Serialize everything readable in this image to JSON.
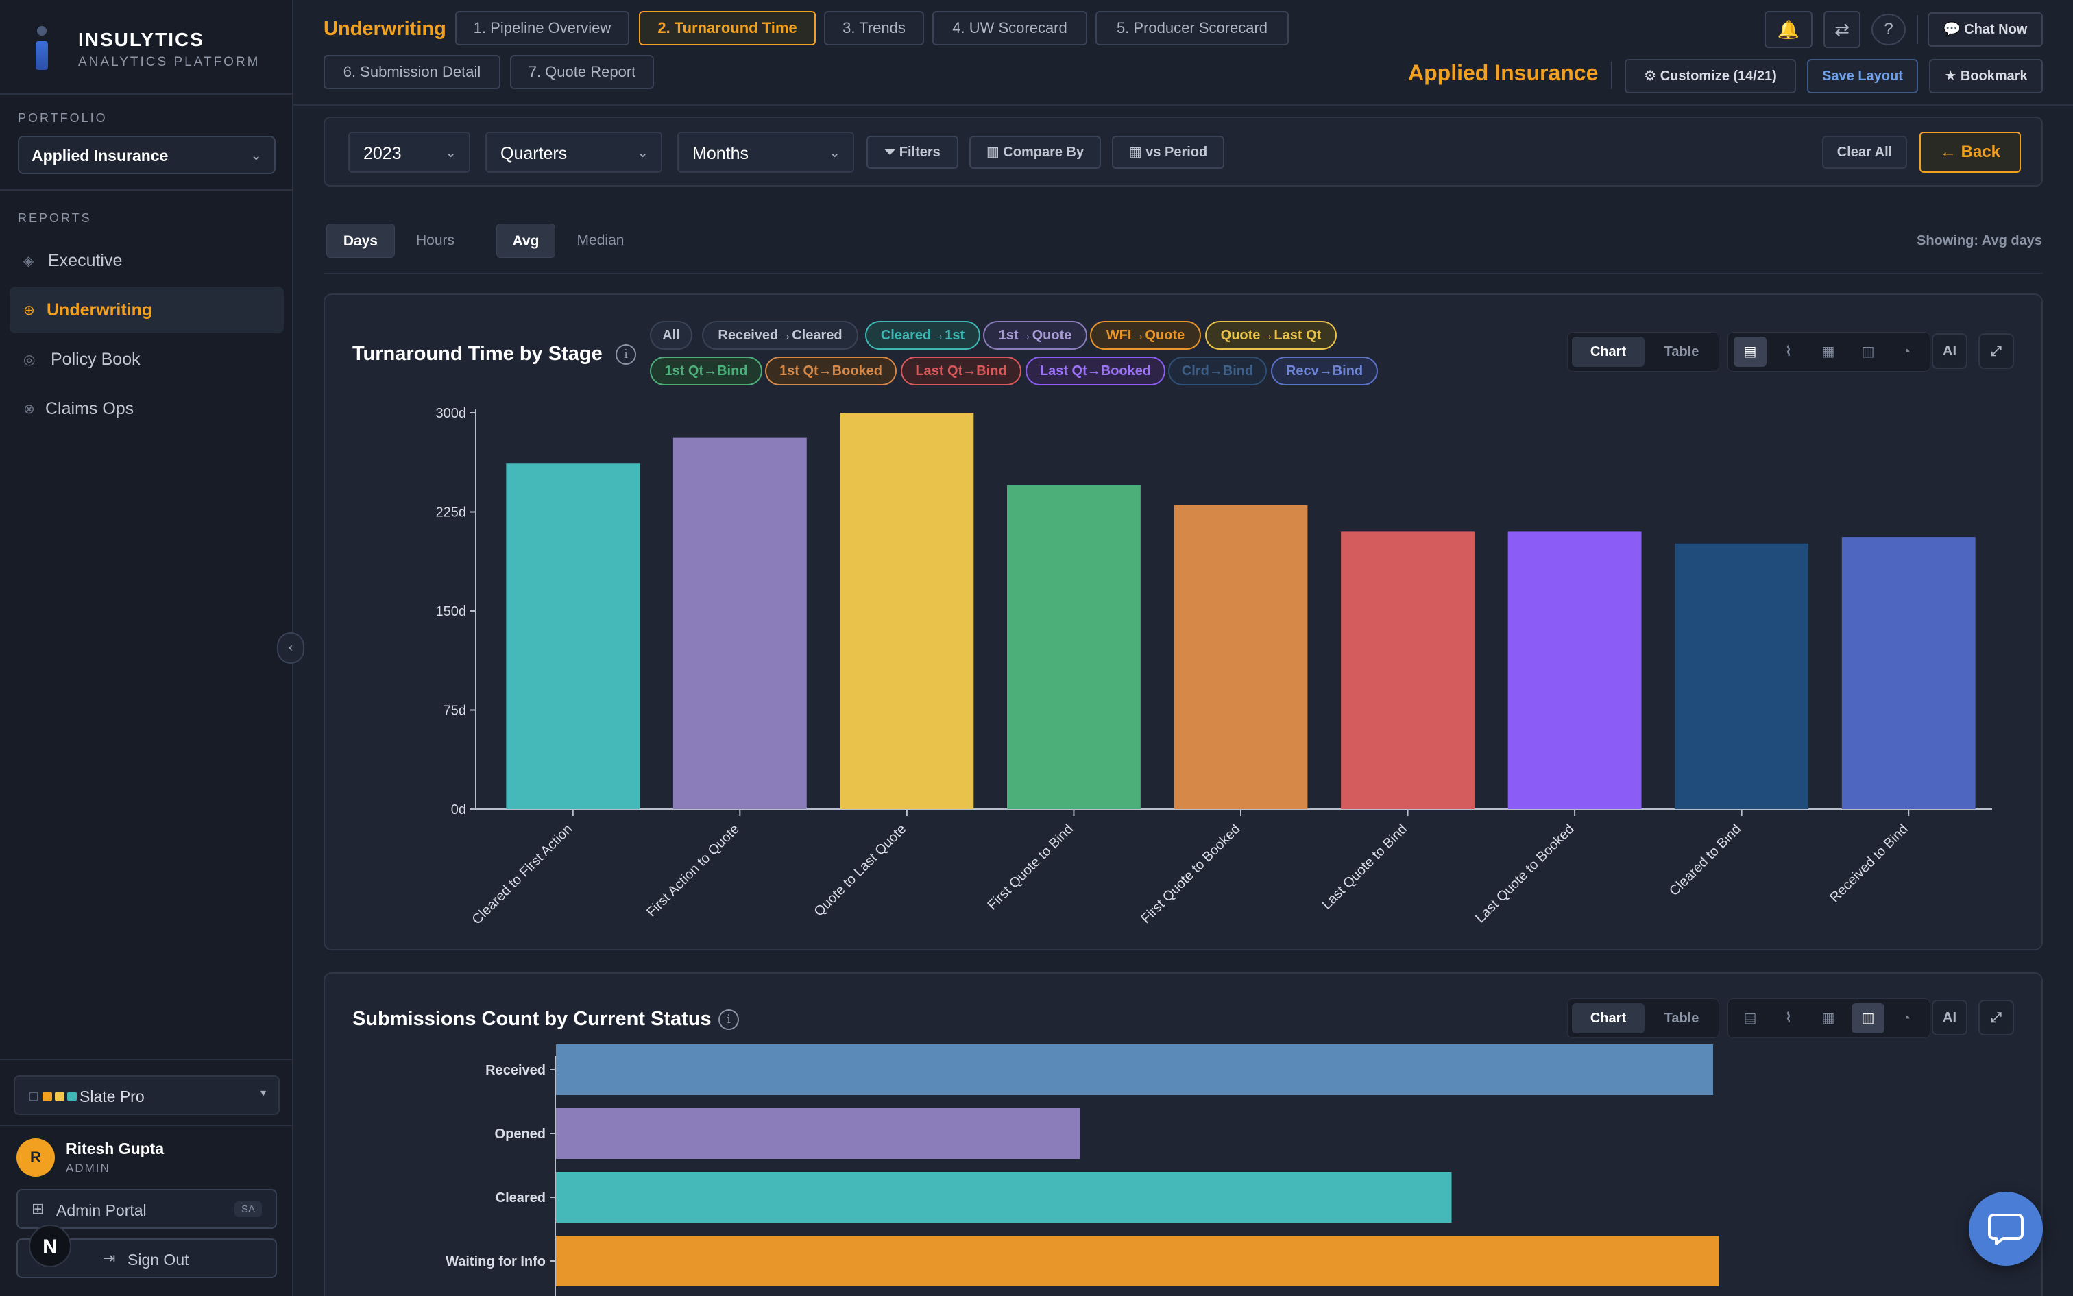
{
  "brand": {
    "name": "INSULYTICS",
    "subtitle": "ANALYTICS PLATFORM"
  },
  "sidebar": {
    "portfolio_label": "PORTFOLIO",
    "portfolio_value": "Applied Insurance",
    "reports_label": "REPORTS",
    "items": [
      {
        "label": "Executive",
        "icon": "diamond-icon"
      },
      {
        "label": "Underwriting",
        "icon": "target-icon",
        "active": true
      },
      {
        "label": "Policy Book",
        "icon": "circle-icon"
      },
      {
        "label": "Claims Ops",
        "icon": "gear-icon"
      }
    ],
    "theme": "Slate Pro",
    "theme_colors": [
      "#3a4356",
      "#f2a01f",
      "#f2c94c",
      "#3fb8b5"
    ],
    "user": {
      "initial": "R",
      "name": "Ritesh Gupta",
      "role": "ADMIN"
    },
    "admin_portal": "Admin Portal",
    "admin_badge": "SA",
    "sign_out": "Sign Out",
    "n_badge": "N"
  },
  "header": {
    "title": "Underwriting",
    "tabs": [
      "1. Pipeline Overview",
      "2. Turnaround Time",
      "3. Trends",
      "4. UW Scorecard",
      "5. Producer Scorecard",
      "6. Submission Detail",
      "7. Quote Report"
    ],
    "active_tab": "2. Turnaround Time",
    "chat_now": "Chat Now",
    "company": "Applied Insurance",
    "customize": "Customize (14/21)",
    "save_layout": "Save Layout",
    "bookmark": "Bookmark"
  },
  "filters": {
    "year": "2023",
    "quarters": "Quarters",
    "months": "Months",
    "filters_btn": "Filters",
    "compare_by": "Compare By",
    "vs_period": "vs Period",
    "clear_all": "Clear All",
    "back": "← Back"
  },
  "toggles": {
    "days": "Days",
    "hours": "Hours",
    "avg": "Avg",
    "median": "Median",
    "showing": "Showing: Avg days"
  },
  "card1": {
    "title": "Turnaround Time by Stage",
    "chips": [
      {
        "label": "All",
        "color": "#c3c9d4"
      },
      {
        "label": "Received→Cleared",
        "color": "#c3c9d4"
      },
      {
        "label": "Cleared→1st",
        "color": "#3fb8b5"
      },
      {
        "label": "1st→Quote",
        "color": "#8b7dba"
      },
      {
        "label": "WFI→Quote",
        "color": "#e8962a"
      },
      {
        "label": "Quote→Last Qt",
        "color": "#e8c24a"
      },
      {
        "label": "1st Qt→Bind",
        "color": "#4caf7a"
      },
      {
        "label": "1st Qt→Booked",
        "color": "#d68848"
      },
      {
        "label": "Last Qt→Bind",
        "color": "#d9585a"
      },
      {
        "label": "Last Qt→Booked",
        "color": "#8b5cf6"
      },
      {
        "label": "Clrd→Bind",
        "color": "#2f4f75"
      },
      {
        "label": "Recv→Bind",
        "color": "#5a72c8"
      }
    ],
    "view_chart": "Chart",
    "view_table": "Table",
    "ai": "AI"
  },
  "card2": {
    "title": "Submissions Count by Current Status",
    "view_chart": "Chart",
    "view_table": "Table",
    "ai": "AI"
  },
  "chart_data": [
    {
      "type": "bar",
      "title": "Turnaround Time by Stage",
      "categories": [
        "Cleared to First Action",
        "First Action to Quote",
        "Quote to Last Quote",
        "First Quote to Bind",
        "First Quote to Booked",
        "Last Quote to Bind",
        "Last Quote to Booked",
        "Cleared to Bind",
        "Received to Bind"
      ],
      "values": [
        262,
        281,
        300,
        245,
        230,
        210,
        210,
        201,
        206
      ],
      "colors": [
        "#45b9b9",
        "#8b7dba",
        "#e8c24a",
        "#4caf7a",
        "#d68848",
        "#d45c5c",
        "#8b5cf6",
        "#1f4c7a",
        "#4e66c0"
      ],
      "yticks": [
        "0d",
        "75d",
        "150d",
        "225d",
        "300d"
      ],
      "ylim": [
        0,
        300
      ],
      "grid": false
    },
    {
      "type": "bar",
      "orientation": "horizontal",
      "title": "Submissions Count by Current Status",
      "categories": [
        "Received",
        "Opened",
        "Cleared",
        "Waiting for Info"
      ],
      "values": [
        1.0,
        0.453,
        0.774,
        1.005
      ],
      "colors": [
        "#5b8ab8",
        "#8b7dba",
        "#45b9b9",
        "#e8962a"
      ]
    }
  ]
}
